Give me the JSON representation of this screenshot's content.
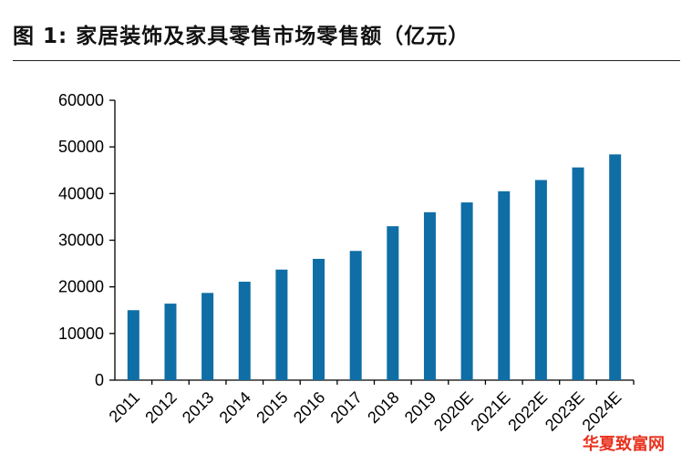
{
  "title": "图 1:  家居装饰及家具零售市场零售额（亿元）",
  "watermark": "华夏致富网",
  "colors": {
    "bar": "#0f6ea5",
    "axis": "#000000"
  },
  "chart_data": {
    "type": "bar",
    "title": "图 1:  家居装饰及家具零售市场零售额（亿元）",
    "xlabel": "",
    "ylabel": "",
    "ylim": [
      0,
      60000
    ],
    "yticks": [
      0,
      10000,
      20000,
      30000,
      40000,
      50000,
      60000
    ],
    "grid": false,
    "categories": [
      "2011",
      "2012",
      "2013",
      "2014",
      "2015",
      "2016",
      "2017",
      "2018",
      "2019",
      "2020E",
      "2021E",
      "2022E",
      "2023E",
      "2024E"
    ],
    "values": [
      15000,
      16400,
      18700,
      21100,
      23700,
      26000,
      27700,
      33000,
      36000,
      38100,
      40500,
      42900,
      45600,
      48400
    ]
  }
}
